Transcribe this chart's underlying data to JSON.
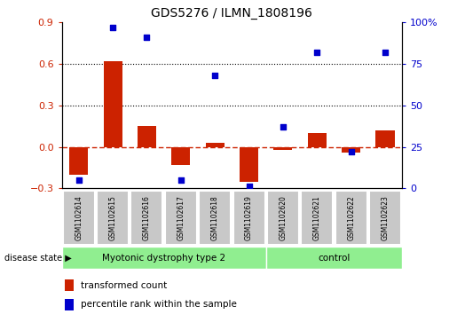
{
  "title": "GDS5276 / ILMN_1808196",
  "samples": [
    "GSM1102614",
    "GSM1102615",
    "GSM1102616",
    "GSM1102617",
    "GSM1102618",
    "GSM1102619",
    "GSM1102620",
    "GSM1102621",
    "GSM1102622",
    "GSM1102623"
  ],
  "transformed_count": [
    -0.2,
    0.62,
    0.15,
    -0.13,
    0.03,
    -0.25,
    -0.02,
    0.1,
    -0.04,
    0.12
  ],
  "percentile_rank": [
    5,
    97,
    91,
    5,
    68,
    1,
    37,
    82,
    22,
    82
  ],
  "groups": [
    {
      "label": "Myotonic dystrophy type 2",
      "start": 0,
      "end": 6,
      "color": "#90ee90"
    },
    {
      "label": "control",
      "start": 6,
      "end": 10,
      "color": "#90ee90"
    }
  ],
  "ylim_left": [
    -0.3,
    0.9
  ],
  "ylim_right": [
    0,
    100
  ],
  "yticks_left": [
    -0.3,
    0.0,
    0.3,
    0.6,
    0.9
  ],
  "yticks_right": [
    0,
    25,
    50,
    75,
    100
  ],
  "bar_color": "#cc2200",
  "dot_color": "#0000cc",
  "hline_color": "#cc2200",
  "dotted_lines": [
    0.3,
    0.6
  ],
  "legend_bar_label": "transformed count",
  "legend_dot_label": "percentile rank within the sample",
  "disease_state_label": "disease state",
  "group_box_color": "#c8c8c8",
  "figsize": [
    5.15,
    3.63
  ],
  "dpi": 100
}
